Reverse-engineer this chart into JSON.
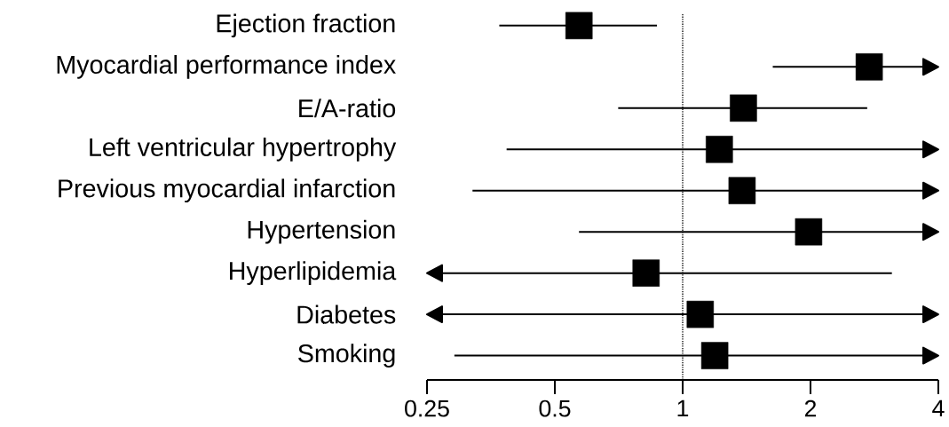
{
  "chart_data": {
    "type": "scatter",
    "orientation": "horizontal",
    "categories": [
      "Ejection fraction",
      "Myocardial performance index",
      "E/A-ratio",
      "Left ventricular hypertrophy",
      "Previous myocardial infarction",
      "Hypertension",
      "Hyperlipidemia",
      "Diabetes",
      "Smoking"
    ],
    "values": [
      0.57,
      2.75,
      1.39,
      1.22,
      1.38,
      1.98,
      0.82,
      1.1,
      1.19
    ],
    "errors": [
      [
        0.37,
        0.87
      ],
      [
        1.63,
        4
      ],
      [
        0.705,
        2.72
      ],
      [
        0.385,
        4
      ],
      [
        0.32,
        4
      ],
      [
        0.57,
        4
      ],
      [
        0.25,
        3.11
      ],
      [
        0.25,
        4
      ],
      [
        0.29,
        4
      ]
    ],
    "color": "#000000",
    "marker": "square",
    "log": "x",
    "xlim": [
      0.25,
      4
    ],
    "xticks": [
      0.25,
      0.5,
      1,
      2,
      4
    ],
    "ref_lines": [
      {
        "axis": "x",
        "value": 1,
        "line_style": "dotted",
        "color": "#000000"
      }
    ]
  }
}
